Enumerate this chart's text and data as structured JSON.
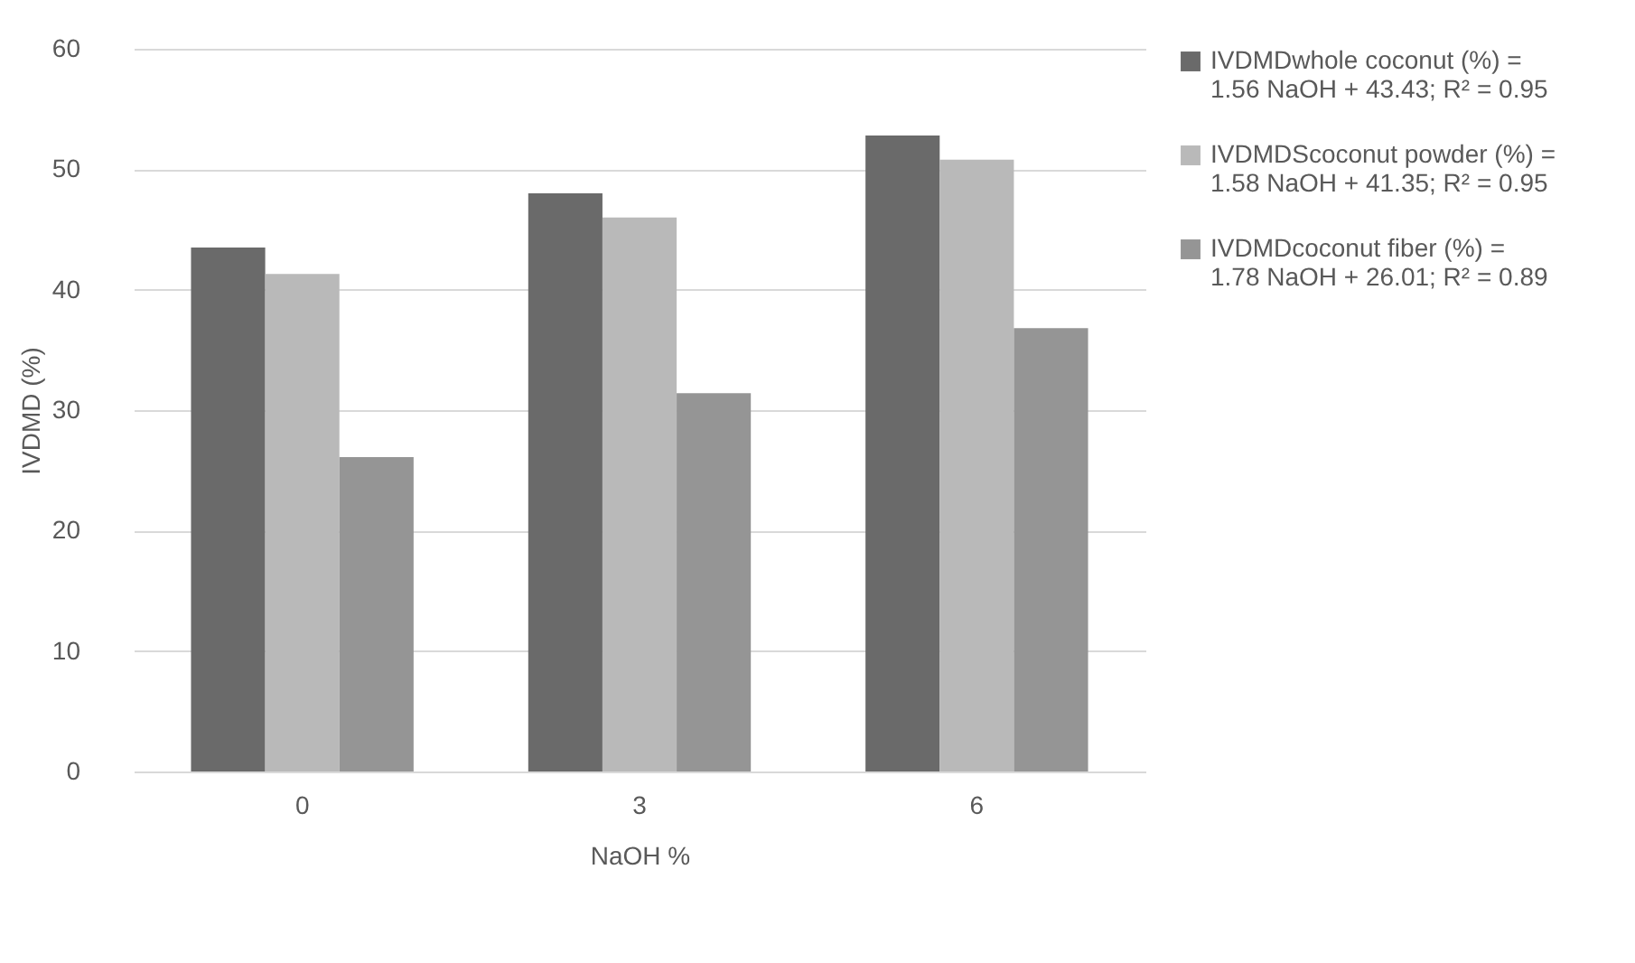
{
  "chart_data": {
    "type": "bar",
    "xlabel": "NaOH %",
    "ylabel": "IVDMD (%)",
    "categories": [
      "0",
      "3",
      "6"
    ],
    "series": [
      {
        "name": "IVDMDwhole coconut (%) = 1.56 NaOH + 43.43; R² = 0.95",
        "color": "#6a6a6a",
        "values": [
          43.5,
          48.0,
          52.8
        ]
      },
      {
        "name": "IVDMDScoconut powder (%) = 1.58 NaOH + 41.35; R² = 0.95",
        "color": "#b9b9b9",
        "values": [
          41.3,
          46.0,
          50.8
        ]
      },
      {
        "name": "IVDMDcoconut fiber (%) = 1.78 NaOH + 26.01; R² = 0.89",
        "color": "#959595",
        "values": [
          26.1,
          31.4,
          36.8
        ]
      }
    ],
    "ylim": [
      0,
      60
    ],
    "yticks": [
      0,
      10,
      20,
      30,
      40,
      50,
      60
    ],
    "grid": "y",
    "legend": "right"
  }
}
